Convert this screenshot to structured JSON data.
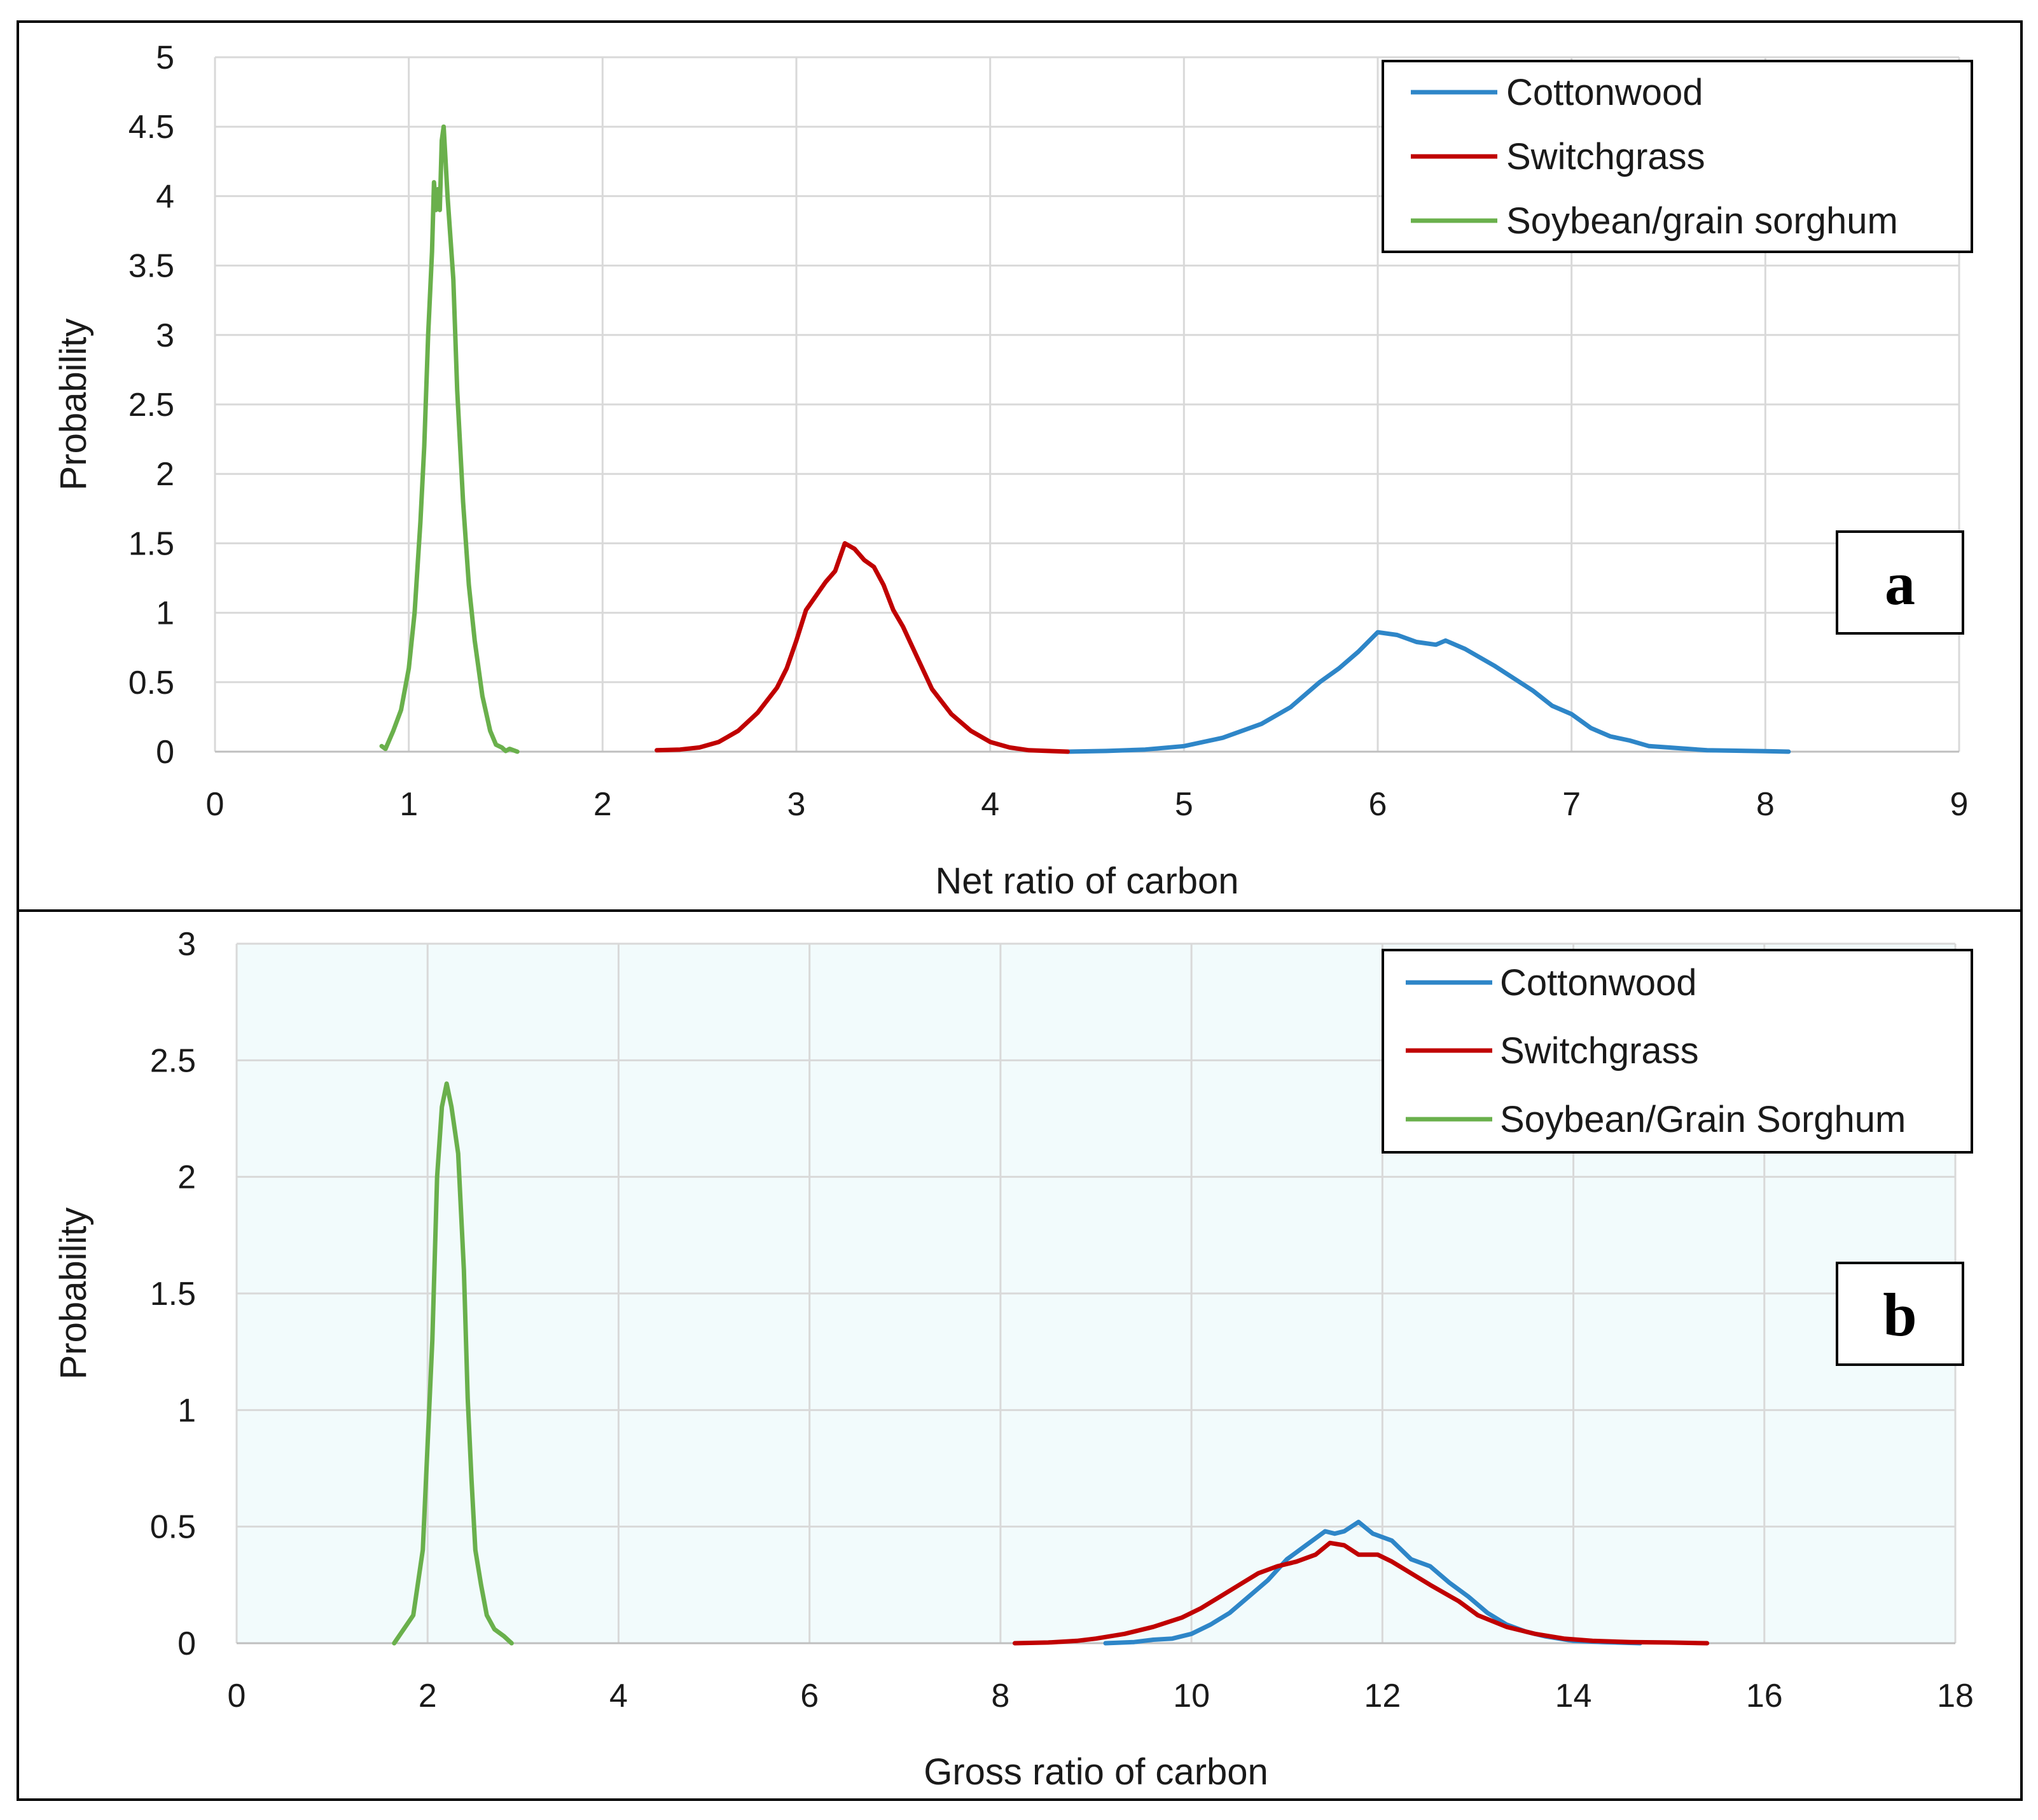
{
  "chart_data": [
    {
      "type": "line",
      "panel_label": "a",
      "xlabel": "Net ratio of carbon",
      "ylabel": "Probability",
      "xlim": [
        0,
        9
      ],
      "ylim": [
        0,
        5
      ],
      "xticks": [
        "0",
        "1",
        "2",
        "3",
        "4",
        "5",
        "6",
        "7",
        "8",
        "9"
      ],
      "yticks": [
        "0",
        "0.5",
        "1",
        "1.5",
        "2",
        "2.5",
        "3",
        "3.5",
        "4",
        "4.5",
        "5"
      ],
      "grid": true,
      "legend_position": "top-right",
      "series": [
        {
          "name": "Cottonwood",
          "color": "#2e86c8",
          "points": [
            [
              4.4,
              0
            ],
            [
              4.6,
              0.005
            ],
            [
              4.8,
              0.015
            ],
            [
              5.0,
              0.04
            ],
            [
              5.2,
              0.1
            ],
            [
              5.4,
              0.2
            ],
            [
              5.55,
              0.32
            ],
            [
              5.7,
              0.5
            ],
            [
              5.8,
              0.6
            ],
            [
              5.9,
              0.72
            ],
            [
              6.0,
              0.86
            ],
            [
              6.1,
              0.84
            ],
            [
              6.2,
              0.79
            ],
            [
              6.3,
              0.77
            ],
            [
              6.35,
              0.8
            ],
            [
              6.45,
              0.74
            ],
            [
              6.6,
              0.62
            ],
            [
              6.8,
              0.44
            ],
            [
              6.9,
              0.33
            ],
            [
              7.0,
              0.27
            ],
            [
              7.1,
              0.17
            ],
            [
              7.2,
              0.11
            ],
            [
              7.3,
              0.08
            ],
            [
              7.4,
              0.04
            ],
            [
              7.5,
              0.03
            ],
            [
              7.7,
              0.01
            ],
            [
              8.0,
              0.003
            ],
            [
              8.12,
              0
            ]
          ]
        },
        {
          "name": "Switchgrass",
          "color": "#c00000",
          "points": [
            [
              2.28,
              0.01
            ],
            [
              2.4,
              0.015
            ],
            [
              2.5,
              0.03
            ],
            [
              2.6,
              0.07
            ],
            [
              2.7,
              0.15
            ],
            [
              2.8,
              0.28
            ],
            [
              2.9,
              0.46
            ],
            [
              2.95,
              0.6
            ],
            [
              3.0,
              0.8
            ],
            [
              3.05,
              1.02
            ],
            [
              3.1,
              1.12
            ],
            [
              3.15,
              1.22
            ],
            [
              3.2,
              1.3
            ],
            [
              3.25,
              1.5
            ],
            [
              3.3,
              1.46
            ],
            [
              3.35,
              1.38
            ],
            [
              3.4,
              1.33
            ],
            [
              3.45,
              1.2
            ],
            [
              3.5,
              1.02
            ],
            [
              3.55,
              0.9
            ],
            [
              3.6,
              0.75
            ],
            [
              3.7,
              0.45
            ],
            [
              3.8,
              0.27
            ],
            [
              3.9,
              0.15
            ],
            [
              4.0,
              0.07
            ],
            [
              4.1,
              0.03
            ],
            [
              4.2,
              0.01
            ],
            [
              4.3,
              0.005
            ],
            [
              4.4,
              0
            ]
          ]
        },
        {
          "name": "Soybean/grain sorghum",
          "color": "#6ab04c",
          "points": [
            [
              0.86,
              0.04
            ],
            [
              0.88,
              0.02
            ],
            [
              0.92,
              0.15
            ],
            [
              0.96,
              0.3
            ],
            [
              1.0,
              0.6
            ],
            [
              1.03,
              1.0
            ],
            [
              1.06,
              1.65
            ],
            [
              1.08,
              2.2
            ],
            [
              1.1,
              3.0
            ],
            [
              1.12,
              3.6
            ],
            [
              1.13,
              4.1
            ],
            [
              1.14,
              3.9
            ],
            [
              1.15,
              4.05
            ],
            [
              1.16,
              3.9
            ],
            [
              1.17,
              4.4
            ],
            [
              1.18,
              4.5
            ],
            [
              1.2,
              4.0
            ],
            [
              1.23,
              3.4
            ],
            [
              1.25,
              2.6
            ],
            [
              1.28,
              1.8
            ],
            [
              1.31,
              1.2
            ],
            [
              1.34,
              0.8
            ],
            [
              1.38,
              0.4
            ],
            [
              1.42,
              0.15
            ],
            [
              1.45,
              0.05
            ],
            [
              1.48,
              0.03
            ],
            [
              1.5,
              0.005
            ],
            [
              1.52,
              0.02
            ],
            [
              1.56,
              0
            ]
          ]
        }
      ]
    },
    {
      "type": "line",
      "panel_label": "b",
      "xlabel": "Gross ratio of carbon",
      "ylabel": "Probability",
      "xlim": [
        0,
        18
      ],
      "ylim": [
        0,
        3
      ],
      "xticks": [
        "0",
        "2",
        "4",
        "6",
        "8",
        "10",
        "12",
        "14",
        "16",
        "18"
      ],
      "yticks": [
        "0",
        "0.5",
        "1",
        "1.5",
        "2",
        "2.5",
        "3"
      ],
      "grid": true,
      "legend_position": "top-right",
      "series": [
        {
          "name": "Cottonwood",
          "color": "#2e86c8",
          "points": [
            [
              9.1,
              0
            ],
            [
              9.4,
              0.005
            ],
            [
              9.6,
              0.015
            ],
            [
              9.8,
              0.02
            ],
            [
              10.0,
              0.04
            ],
            [
              10.2,
              0.08
            ],
            [
              10.4,
              0.13
            ],
            [
              10.6,
              0.2
            ],
            [
              10.8,
              0.27
            ],
            [
              11.0,
              0.36
            ],
            [
              11.2,
              0.42
            ],
            [
              11.4,
              0.48
            ],
            [
              11.5,
              0.47
            ],
            [
              11.6,
              0.48
            ],
            [
              11.75,
              0.52
            ],
            [
              11.9,
              0.47
            ],
            [
              12.1,
              0.44
            ],
            [
              12.3,
              0.36
            ],
            [
              12.5,
              0.33
            ],
            [
              12.7,
              0.26
            ],
            [
              12.9,
              0.2
            ],
            [
              13.1,
              0.13
            ],
            [
              13.3,
              0.08
            ],
            [
              13.5,
              0.05
            ],
            [
              13.7,
              0.03
            ],
            [
              14.0,
              0.01
            ],
            [
              14.3,
              0.005
            ],
            [
              14.7,
              0
            ]
          ]
        },
        {
          "name": "Switchgrass",
          "color": "#c00000",
          "points": [
            [
              8.15,
              0
            ],
            [
              8.5,
              0.003
            ],
            [
              8.8,
              0.01
            ],
            [
              9.0,
              0.02
            ],
            [
              9.3,
              0.04
            ],
            [
              9.6,
              0.07
            ],
            [
              9.9,
              0.11
            ],
            [
              10.1,
              0.15
            ],
            [
              10.3,
              0.2
            ],
            [
              10.5,
              0.25
            ],
            [
              10.7,
              0.3
            ],
            [
              10.9,
              0.33
            ],
            [
              11.1,
              0.35
            ],
            [
              11.3,
              0.38
            ],
            [
              11.45,
              0.43
            ],
            [
              11.6,
              0.42
            ],
            [
              11.75,
              0.38
            ],
            [
              11.95,
              0.38
            ],
            [
              12.1,
              0.35
            ],
            [
              12.3,
              0.3
            ],
            [
              12.5,
              0.25
            ],
            [
              12.8,
              0.18
            ],
            [
              13.0,
              0.12
            ],
            [
              13.3,
              0.07
            ],
            [
              13.6,
              0.04
            ],
            [
              13.9,
              0.02
            ],
            [
              14.2,
              0.01
            ],
            [
              14.6,
              0.005
            ],
            [
              15.0,
              0.003
            ],
            [
              15.4,
              0
            ]
          ]
        },
        {
          "name": "Soybean/Grain Sorghum",
          "color": "#6ab04c",
          "points": [
            [
              1.65,
              0
            ],
            [
              1.75,
              0.06
            ],
            [
              1.85,
              0.12
            ],
            [
              1.95,
              0.4
            ],
            [
              2.0,
              0.85
            ],
            [
              2.05,
              1.3
            ],
            [
              2.1,
              2.0
            ],
            [
              2.15,
              2.3
            ],
            [
              2.2,
              2.4
            ],
            [
              2.25,
              2.3
            ],
            [
              2.32,
              2.1
            ],
            [
              2.38,
              1.6
            ],
            [
              2.42,
              1.05
            ],
            [
              2.46,
              0.7
            ],
            [
              2.5,
              0.4
            ],
            [
              2.56,
              0.25
            ],
            [
              2.62,
              0.12
            ],
            [
              2.7,
              0.06
            ],
            [
              2.8,
              0.03
            ],
            [
              2.88,
              0
            ]
          ]
        }
      ]
    }
  ]
}
